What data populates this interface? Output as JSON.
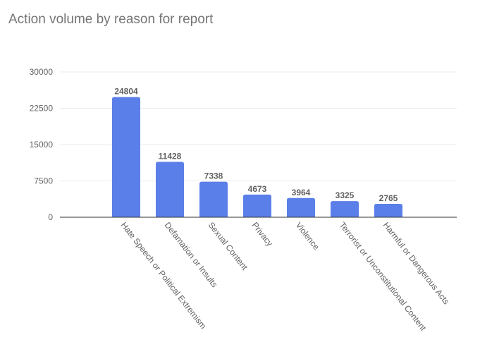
{
  "chart_data": {
    "type": "bar",
    "title": "Action volume by reason for report",
    "xlabel": "",
    "ylabel": "",
    "categories": [
      "Hate Speech or Political Extremism",
      "Defamation or Insults",
      "Sexual Content",
      "Privacy",
      "Violence",
      "Terrorist or Unconstitutional Content",
      "Harmful or Dangerous Acts"
    ],
    "values": [
      24804,
      11428,
      7338,
      4673,
      3964,
      3325,
      2765
    ],
    "data_labels": [
      "24804",
      "11428",
      "7338",
      "4673",
      "3964",
      "3325",
      "2765"
    ],
    "ylim": [
      0,
      30000
    ],
    "y_ticks": [
      0,
      7500,
      15000,
      22500,
      30000
    ],
    "y_tick_labels": [
      "0",
      "7500",
      "15000",
      "22500",
      "30000"
    ],
    "grid": true,
    "legend": "none",
    "bar_color": "#5b7fe8"
  }
}
